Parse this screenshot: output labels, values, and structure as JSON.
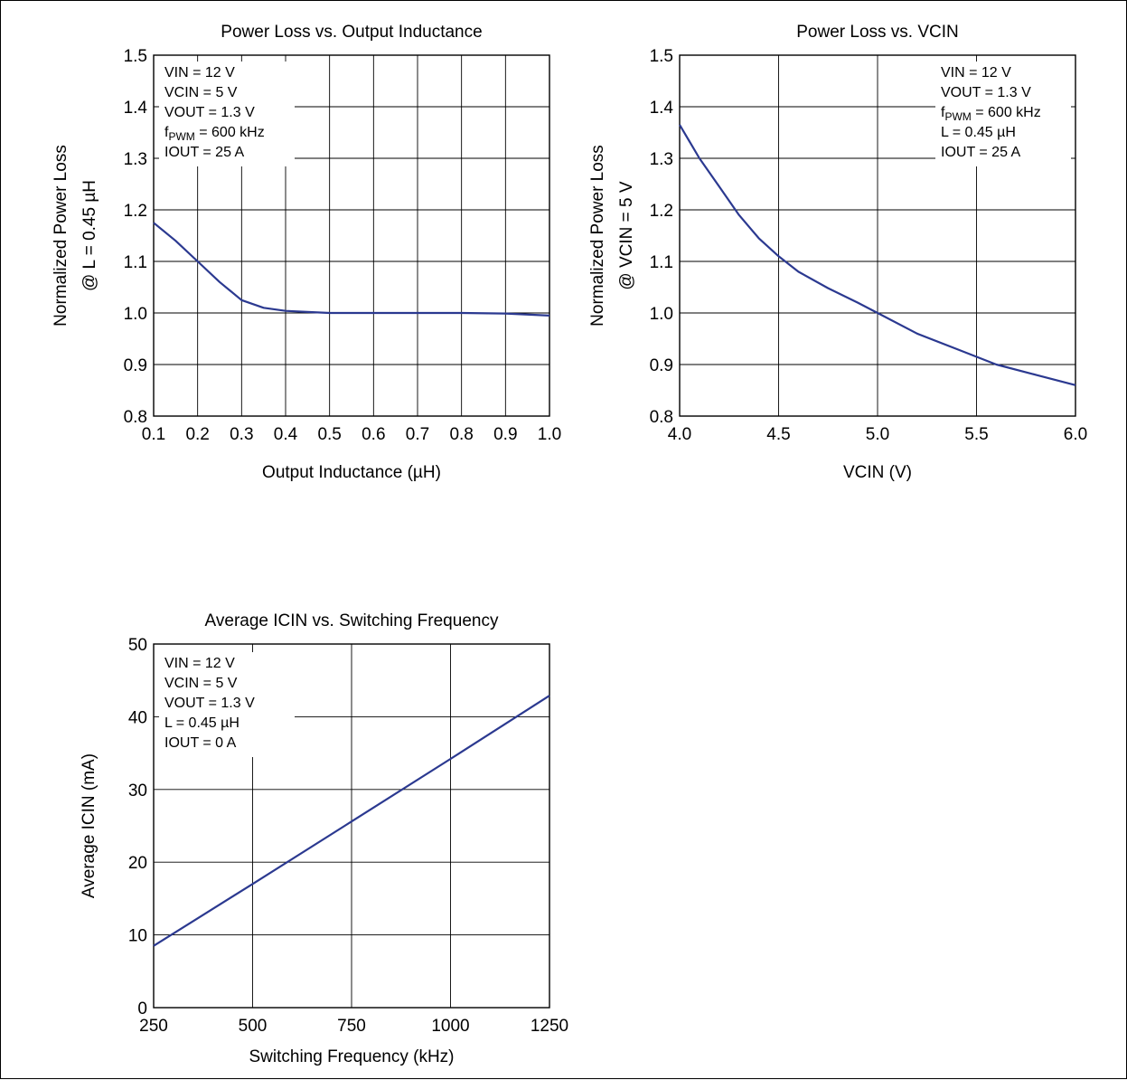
{
  "chart_data": [
    {
      "type": "line",
      "title": "Power Loss vs. Output Inductance",
      "xlabel": "Output Inductance   (µH)",
      "ylabel": [
        "Normalized Power Loss",
        "@ L = 0.45 µH"
      ],
      "xlim": [
        0.1,
        1.0
      ],
      "ylim": [
        0.8,
        1.5
      ],
      "xticks": [
        "0.1",
        "0.2",
        "0.3",
        "0.4",
        "0.5",
        "0.6",
        "0.7",
        "0.8",
        "0.9",
        "1.0"
      ],
      "yticks": [
        "0.8",
        "0.9",
        "1.0",
        "1.1",
        "1.2",
        "1.3",
        "1.4",
        "1.5"
      ],
      "grid": true,
      "conditions": [
        {
          "text": "VIN = 12 V"
        },
        {
          "text": "VCIN = 5 V"
        },
        {
          "text": "VOUT = 1.3 V"
        },
        {
          "main": "f",
          "sub": "PWM",
          "rest": " = 600 kHz"
        },
        {
          "text": "IOUT = 25 A"
        }
      ],
      "conditions_placement": "top-left",
      "series": [
        {
          "color": "#2b3990",
          "x": [
            0.1,
            0.15,
            0.2,
            0.25,
            0.3,
            0.35,
            0.4,
            0.45,
            0.5,
            0.6,
            0.7,
            0.8,
            0.9,
            1.0
          ],
          "y": [
            1.175,
            1.14,
            1.1,
            1.06,
            1.025,
            1.01,
            1.004,
            1.002,
            1.0,
            1.0,
            1.0,
            1.0,
            0.999,
            0.995
          ]
        }
      ]
    },
    {
      "type": "line",
      "title": "Power Loss vs. VCIN",
      "xlabel": "VCIN   (V)",
      "ylabel": [
        "Normalized Power Loss",
        "@ VCIN = 5 V"
      ],
      "xlim": [
        4.0,
        6.0
      ],
      "ylim": [
        0.8,
        1.5
      ],
      "xticks": [
        "4.0",
        "4.5",
        "5.0",
        "5.5",
        "6.0"
      ],
      "yticks": [
        "0.8",
        "0.9",
        "1.0",
        "1.1",
        "1.2",
        "1.3",
        "1.4",
        "1.5"
      ],
      "grid": true,
      "conditions": [
        {
          "text": "VIN = 12 V"
        },
        {
          "text": "VOUT = 1.3 V"
        },
        {
          "main": "f",
          "sub": "PWM",
          "rest": " = 600 kHz"
        },
        {
          "text": "L = 0.45 µH"
        },
        {
          "text": "IOUT = 25 A"
        }
      ],
      "conditions_placement": "top-right",
      "series": [
        {
          "color": "#2b3990",
          "x": [
            4.0,
            4.1,
            4.2,
            4.3,
            4.4,
            4.5,
            4.6,
            4.75,
            4.9,
            5.0,
            5.2,
            5.4,
            5.6,
            5.8,
            6.0
          ],
          "y": [
            1.365,
            1.3,
            1.245,
            1.19,
            1.145,
            1.11,
            1.08,
            1.048,
            1.02,
            1.0,
            0.96,
            0.93,
            0.9,
            0.88,
            0.86
          ]
        }
      ]
    },
    {
      "type": "line",
      "title": "Average ICIN vs. Switching Frequency",
      "xlabel": "Switching Frequency   (kHz)",
      "ylabel": [
        "Average ICIN   (mA)"
      ],
      "xlim": [
        250,
        1250
      ],
      "ylim": [
        0,
        50
      ],
      "xticks": [
        "250",
        "500",
        "750",
        "1000",
        "1250"
      ],
      "yticks": [
        "0",
        "10",
        "20",
        "30",
        "40",
        "50"
      ],
      "grid": true,
      "conditions": [
        {
          "text": "VIN = 12 V"
        },
        {
          "text": "VCIN = 5 V"
        },
        {
          "text": "VOUT = 1.3 V"
        },
        {
          "text": "L = 0.45 µH"
        },
        {
          "text": "IOUT = 0 A"
        }
      ],
      "conditions_placement": "top-left",
      "series": [
        {
          "color": "#2b3990",
          "x": [
            250,
            500,
            750,
            1000,
            1250
          ],
          "y": [
            8.5,
            17.0,
            25.6,
            34.2,
            42.9
          ]
        }
      ]
    }
  ]
}
